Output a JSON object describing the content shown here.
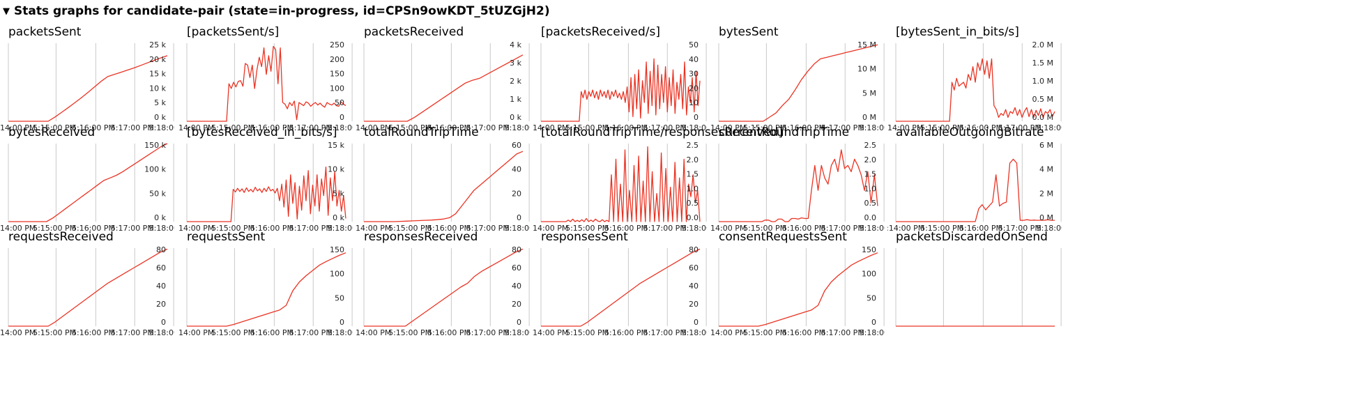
{
  "header": {
    "toggle_glyph": "▼",
    "title": "Stats graphs for candidate-pair (state=in-progress, id=CPSn9owKDT_5tUZGjH2)"
  },
  "colors": {
    "series": "#ea3323",
    "grid": "#c8c8c8",
    "axis": "#555555"
  },
  "chart_data": [
    {
      "type": "line",
      "title": "packetsSent",
      "yticks": [
        "25 k",
        "20 k",
        "15 k",
        "10 k",
        "5 k",
        "0 k"
      ],
      "ylim": [
        0,
        25000
      ],
      "xticks": [
        "14:00 PM",
        "5:15:00 PM",
        "5:16:00 PM",
        "5:17:00 PM",
        "5:18:00 PM"
      ],
      "values": [
        0,
        0,
        0,
        0,
        0,
        0,
        0,
        1300,
        2800,
        4300,
        5900,
        7500,
        9200,
        11000,
        12800,
        14300,
        15000,
        15700,
        16400,
        17100,
        17900,
        18700,
        19500,
        20300,
        21000
      ]
    },
    {
      "type": "line",
      "title": "[packetsSent/s]",
      "yticks": [
        "250",
        "200",
        "150",
        "100",
        "50",
        "0"
      ],
      "ylim": [
        0,
        250
      ],
      "xticks": [
        "14:00 PM",
        "5:15:00 PM",
        "5:16:00 PM",
        "5:17:00 PM",
        "5:18:00 PM"
      ],
      "values": [
        0,
        0,
        0,
        0,
        0,
        0,
        0,
        0,
        0,
        0,
        0,
        0,
        0,
        0,
        0,
        0,
        0,
        0,
        120,
        105,
        125,
        110,
        128,
        130,
        112,
        185,
        180,
        140,
        180,
        105,
        165,
        205,
        175,
        235,
        150,
        210,
        160,
        240,
        230,
        120,
        235,
        60,
        55,
        40,
        60,
        50,
        65,
        5,
        60,
        55,
        50,
        62,
        58,
        48,
        55,
        60,
        52,
        58,
        50,
        45,
        60,
        55,
        52,
        58,
        50,
        48,
        62,
        55,
        50
      ]
    },
    {
      "type": "line",
      "title": "packetsReceived",
      "yticks": [
        "4 k",
        "3 k",
        "2 k",
        "1 k",
        "0 k"
      ],
      "ylim": [
        0,
        4000
      ],
      "xticks": [
        "14:00 PM",
        "5:15:00 PM",
        "5:16:00 PM",
        "5:17:00 PM",
        "5:18:00 PM"
      ],
      "values": [
        0,
        0,
        0,
        0,
        0,
        0,
        0,
        200,
        450,
        700,
        950,
        1200,
        1450,
        1700,
        1950,
        2100,
        2200,
        2400,
        2600,
        2800,
        3000,
        3200,
        3400
      ]
    },
    {
      "type": "line",
      "title": "[packetsReceived/s]",
      "yticks": [
        "50",
        "40",
        "30",
        "20",
        "10",
        "0"
      ],
      "ylim": [
        0,
        50
      ],
      "xticks": [
        "14:00 PM",
        "5:15:00 PM",
        "5:16:00 PM",
        "5:17:00 PM",
        "5:18:00 PM"
      ],
      "values": [
        0,
        0,
        0,
        0,
        0,
        0,
        0,
        0,
        0,
        0,
        0,
        0,
        0,
        0,
        0,
        0,
        0,
        0,
        0,
        0,
        0,
        19,
        15,
        20,
        14,
        19,
        16,
        20,
        15,
        19,
        14,
        20,
        16,
        19,
        15,
        20,
        14,
        19,
        16,
        20,
        15,
        18,
        14,
        19,
        12,
        22,
        6,
        28,
        3,
        30,
        8,
        33,
        2,
        26,
        12,
        38,
        5,
        32,
        10,
        40,
        4,
        36,
        8,
        30,
        12,
        35,
        6,
        28,
        10,
        33,
        5,
        25,
        14,
        30,
        8,
        38,
        4,
        22,
        12,
        28,
        6,
        32,
        10,
        26
      ]
    },
    {
      "type": "line",
      "title": "bytesSent",
      "yticks": [
        "15 M",
        "10 M",
        "5 M",
        "0 M"
      ],
      "ylim": [
        0,
        15000000
      ],
      "xticks": [
        "14:00 PM",
        "5:15:00 PM",
        "5:16:00 PM",
        "5:17:00 PM",
        "5:18:00 PM"
      ],
      "values": [
        0,
        0,
        0,
        0,
        0,
        0,
        0,
        0,
        800000,
        1600000,
        3000000,
        4200000,
        6000000,
        8000000,
        9600000,
        11000000,
        12000000,
        12300000,
        12600000,
        12900000,
        13200000,
        13500000,
        13800000,
        14100000,
        14400000,
        14700000
      ]
    },
    {
      "type": "line",
      "title": "[bytesSent_in_bits/s]",
      "yticks": [
        "2.0 M",
        "1.5 M",
        "1.0 M",
        "0.5 M",
        "0.0 M"
      ],
      "ylim": [
        0,
        2000000
      ],
      "xticks": [
        "14:00 PM",
        "5:15:00 PM",
        "5:16:00 PM",
        "5:17:00 PM",
        "5:18:00 PM"
      ],
      "values": [
        0,
        0,
        0,
        0,
        0,
        0,
        0,
        0,
        0,
        0,
        0,
        0,
        0,
        0,
        0,
        0,
        0,
        0,
        0,
        0,
        0,
        0,
        0,
        0,
        1000000,
        800000,
        1100000,
        900000,
        950000,
        1000000,
        850000,
        1200000,
        1050000,
        1400000,
        1000000,
        1500000,
        1300000,
        1600000,
        1200000,
        1550000,
        1100000,
        1600000,
        400000,
        300000,
        100000,
        200000,
        150000,
        300000,
        100000,
        250000,
        200000,
        350000,
        150000,
        300000,
        100000,
        250000,
        350000,
        120000,
        300000,
        100000,
        280000,
        150000,
        320000,
        100000,
        250000,
        200000,
        300000,
        120000,
        250000
      ]
    },
    {
      "type": "line",
      "title": "bytesReceived",
      "yticks": [
        "150 k",
        "100 k",
        "50 k",
        "0 k"
      ],
      "ylim": [
        0,
        150000
      ],
      "xticks": [
        "14:00 PM",
        "5:15:00 PM",
        "5:16:00 PM",
        "5:17:00 PM",
        "5:18:00 PM"
      ],
      "values": [
        0,
        0,
        0,
        0,
        0,
        0,
        0,
        7000,
        16000,
        25000,
        34000,
        43000,
        52000,
        61000,
        70000,
        79000,
        84000,
        89000,
        96000,
        104000,
        112000,
        120000,
        128000,
        136000,
        144000,
        150000
      ]
    },
    {
      "type": "line",
      "title": "[bytesReceived_in_bits/s]",
      "yticks": [
        "15 k",
        "10 k",
        "5 k",
        "0 k"
      ],
      "ylim": [
        0,
        15000
      ],
      "xticks": [
        "14:00 PM",
        "5:15:00 PM",
        "5:16:00 PM",
        "5:17:00 PM",
        "5:18:00 PM"
      ],
      "values": [
        0,
        0,
        0,
        0,
        0,
        0,
        0,
        0,
        0,
        0,
        0,
        0,
        0,
        0,
        0,
        0,
        0,
        0,
        0,
        0,
        0,
        6200,
        5700,
        6400,
        5800,
        6300,
        5600,
        6500,
        5800,
        6200,
        5700,
        6600,
        5900,
        6300,
        5600,
        6400,
        5800,
        6700,
        5900,
        6200,
        5500,
        6400,
        4000,
        7200,
        2800,
        8000,
        1000,
        9000,
        3500,
        7500,
        500,
        6800,
        2200,
        8800,
        4000,
        9800,
        1500,
        7000,
        3000,
        9000,
        2000,
        8200,
        5000,
        10500,
        1200,
        8400,
        4000,
        9600,
        3000,
        6000,
        2000,
        5000,
        600
      ]
    },
    {
      "type": "line",
      "title": "totalRoundTripTime",
      "yticks": [
        "60",
        "40",
        "20",
        "0"
      ],
      "ylim": [
        0,
        60
      ],
      "xticks": [
        "14:00 PM",
        "5:15:00 PM",
        "5:16:00 PM",
        "5:17:00 PM",
        "5:18:00 PM"
      ],
      "values": [
        0,
        0,
        0,
        0,
        0,
        0,
        0.2,
        0.4,
        0.6,
        0.8,
        1,
        1.2,
        1.5,
        2,
        3,
        6,
        12,
        18,
        24,
        28,
        32,
        36,
        40,
        44,
        48,
        52,
        54
      ]
    },
    {
      "type": "line",
      "title": "[totalRoundTripTime/responsesReceived]",
      "yticks": [
        "2.5",
        "2.0",
        "1.5",
        "1.0",
        "0.5",
        "0.0"
      ],
      "ylim": [
        0,
        2.5
      ],
      "xticks": [
        "14:00 PM",
        "5:15:00 PM",
        "5:16:00 PM",
        "5:17:00 PM",
        "5:18:00 PM"
      ],
      "values": [
        0,
        0,
        0,
        0,
        0,
        0,
        0,
        0,
        0,
        0,
        0,
        0,
        0.05,
        0,
        0.08,
        0,
        0.04,
        0,
        0.06,
        0,
        0.1,
        0,
        0.05,
        0,
        0.08,
        0.02,
        0,
        0.06,
        0,
        0.04,
        0,
        1.5,
        0,
        2.0,
        0,
        1.2,
        0,
        2.3,
        0,
        1.0,
        0,
        1.8,
        0,
        2.1,
        0,
        1.3,
        0,
        2.4,
        0,
        1.6,
        0,
        0.9,
        0,
        2.2,
        0,
        1.7,
        0,
        1.1,
        0,
        1.9,
        0,
        1.4,
        0,
        2.0,
        0,
        1.2,
        0.8,
        1.5,
        0.6,
        1.0,
        0
      ]
    },
    {
      "type": "line",
      "title": "currentRoundTripTime",
      "yticks": [
        "2.5",
        "2.0",
        "1.5",
        "1.0",
        "0.5",
        "0.0"
      ],
      "ylim": [
        0,
        2.5
      ],
      "xticks": [
        "14:00 PM",
        "5:15:00 PM",
        "5:16:00 PM",
        "5:17:00 PM",
        "5:18:00 PM"
      ],
      "values": [
        0,
        0,
        0,
        0,
        0,
        0,
        0,
        0,
        0,
        0,
        0,
        0,
        0,
        0,
        0.05,
        0.05,
        0,
        0,
        0.08,
        0.08,
        0,
        0,
        0.1,
        0.1,
        0.08,
        0.12,
        0.1,
        0.1,
        1.0,
        1.8,
        1.0,
        1.8,
        1.4,
        1.2,
        1.8,
        2.0,
        1.6,
        2.3,
        1.7,
        1.8,
        1.6,
        2.0,
        1.8,
        1.5,
        1.0,
        1.6,
        0.6,
        1.5,
        0.5
      ]
    },
    {
      "type": "line",
      "title": "availableOutgoingBitrate",
      "yticks": [
        "6 M",
        "4 M",
        "2 M",
        "0 M"
      ],
      "ylim": [
        0,
        6000000
      ],
      "xticks": [
        ":14:00 PM",
        "5:15:00 PM",
        "5:16:00 PM",
        "5:17:00 PM",
        "5:18:00 PM"
      ],
      "values": [
        0,
        0,
        0,
        0,
        0,
        0,
        0,
        0,
        0,
        0,
        0,
        0,
        0,
        0,
        0,
        0,
        0,
        0,
        0,
        0,
        0,
        0,
        0,
        0,
        1000000,
        1300000,
        900000,
        1200000,
        1500000,
        3600000,
        1200000,
        1400000,
        1500000,
        4500000,
        4800000,
        4500000,
        100000,
        100000,
        150000,
        100000,
        120000,
        100000,
        110000,
        100000,
        150000,
        100000,
        100000
      ]
    },
    {
      "type": "line",
      "title": "requestsReceived",
      "yticks": [
        "80",
        "60",
        "40",
        "20",
        "0"
      ],
      "ylim": [
        0,
        80
      ],
      "xticks": [
        "14:00 PM",
        "5:15:00 PM",
        "5:16:00 PM",
        "5:17:00 PM",
        "5:18:00 PM"
      ],
      "values": [
        0,
        0,
        0,
        0,
        0,
        0,
        0,
        4,
        9,
        14,
        19,
        24,
        29,
        34,
        39,
        44,
        48,
        52,
        56,
        60,
        64,
        68,
        72,
        76,
        79
      ]
    },
    {
      "type": "line",
      "title": "requestsSent",
      "yticks": [
        "150",
        "100",
        "50",
        "0"
      ],
      "ylim": [
        0,
        150
      ],
      "xticks": [
        "14:00 PM",
        "5:15:00 PM",
        "5:16:00 PM",
        "5:17:00 PM",
        "5:18:00 PM"
      ],
      "values": [
        0,
        0,
        0,
        0,
        0,
        0,
        0,
        3,
        7,
        11,
        15,
        19,
        23,
        27,
        31,
        40,
        68,
        85,
        97,
        107,
        117,
        124,
        130,
        136,
        141
      ]
    },
    {
      "type": "line",
      "title": "responsesReceived",
      "yticks": [
        "80",
        "60",
        "40",
        "20",
        "0"
      ],
      "ylim": [
        0,
        80
      ],
      "xticks": [
        "14:00 PM",
        "5:15:00 PM",
        "5:16:00 PM",
        "5:17:00 PM",
        "5:18:00 PM"
      ],
      "values": [
        0,
        0,
        0,
        0,
        0,
        0,
        0,
        5,
        10,
        15,
        20,
        25,
        30,
        35,
        40,
        44,
        51,
        56,
        60,
        64,
        68,
        72,
        76,
        79
      ]
    },
    {
      "type": "line",
      "title": "responsesSent",
      "yticks": [
        "80",
        "60",
        "40",
        "20",
        "0"
      ],
      "ylim": [
        0,
        80
      ],
      "xticks": [
        "14:00 PM",
        "5:15:00 PM",
        "5:16:00 PM",
        "5:17:00 PM",
        "5:18:00 PM"
      ],
      "values": [
        0,
        0,
        0,
        0,
        0,
        0,
        0,
        4,
        9,
        14,
        19,
        24,
        29,
        34,
        39,
        44,
        48,
        52,
        56,
        60,
        64,
        68,
        72,
        76,
        79
      ]
    },
    {
      "type": "line",
      "title": "consentRequestsSent",
      "yticks": [
        "150",
        "100",
        "50",
        "0"
      ],
      "ylim": [
        0,
        150
      ],
      "xticks": [
        "14:00 PM",
        "5:15:00 PM",
        "5:16:00 PM",
        "5:17:00 PM",
        "5:18:00 PM"
      ],
      "values": [
        0,
        0,
        0,
        0,
        0,
        0,
        0,
        3,
        7,
        11,
        15,
        19,
        23,
        27,
        31,
        40,
        68,
        85,
        97,
        107,
        117,
        124,
        130,
        136,
        141
      ]
    },
    {
      "type": "line",
      "title": "packetsDiscardedOnSend",
      "yticks": [],
      "ylim": [
        0,
        1
      ],
      "xticks": [],
      "values": [
        0,
        0,
        0,
        0,
        0,
        0,
        0,
        0,
        0,
        0,
        0,
        0,
        0,
        0,
        0,
        0,
        0,
        0,
        0,
        0,
        0,
        0,
        0,
        0,
        0
      ]
    }
  ]
}
